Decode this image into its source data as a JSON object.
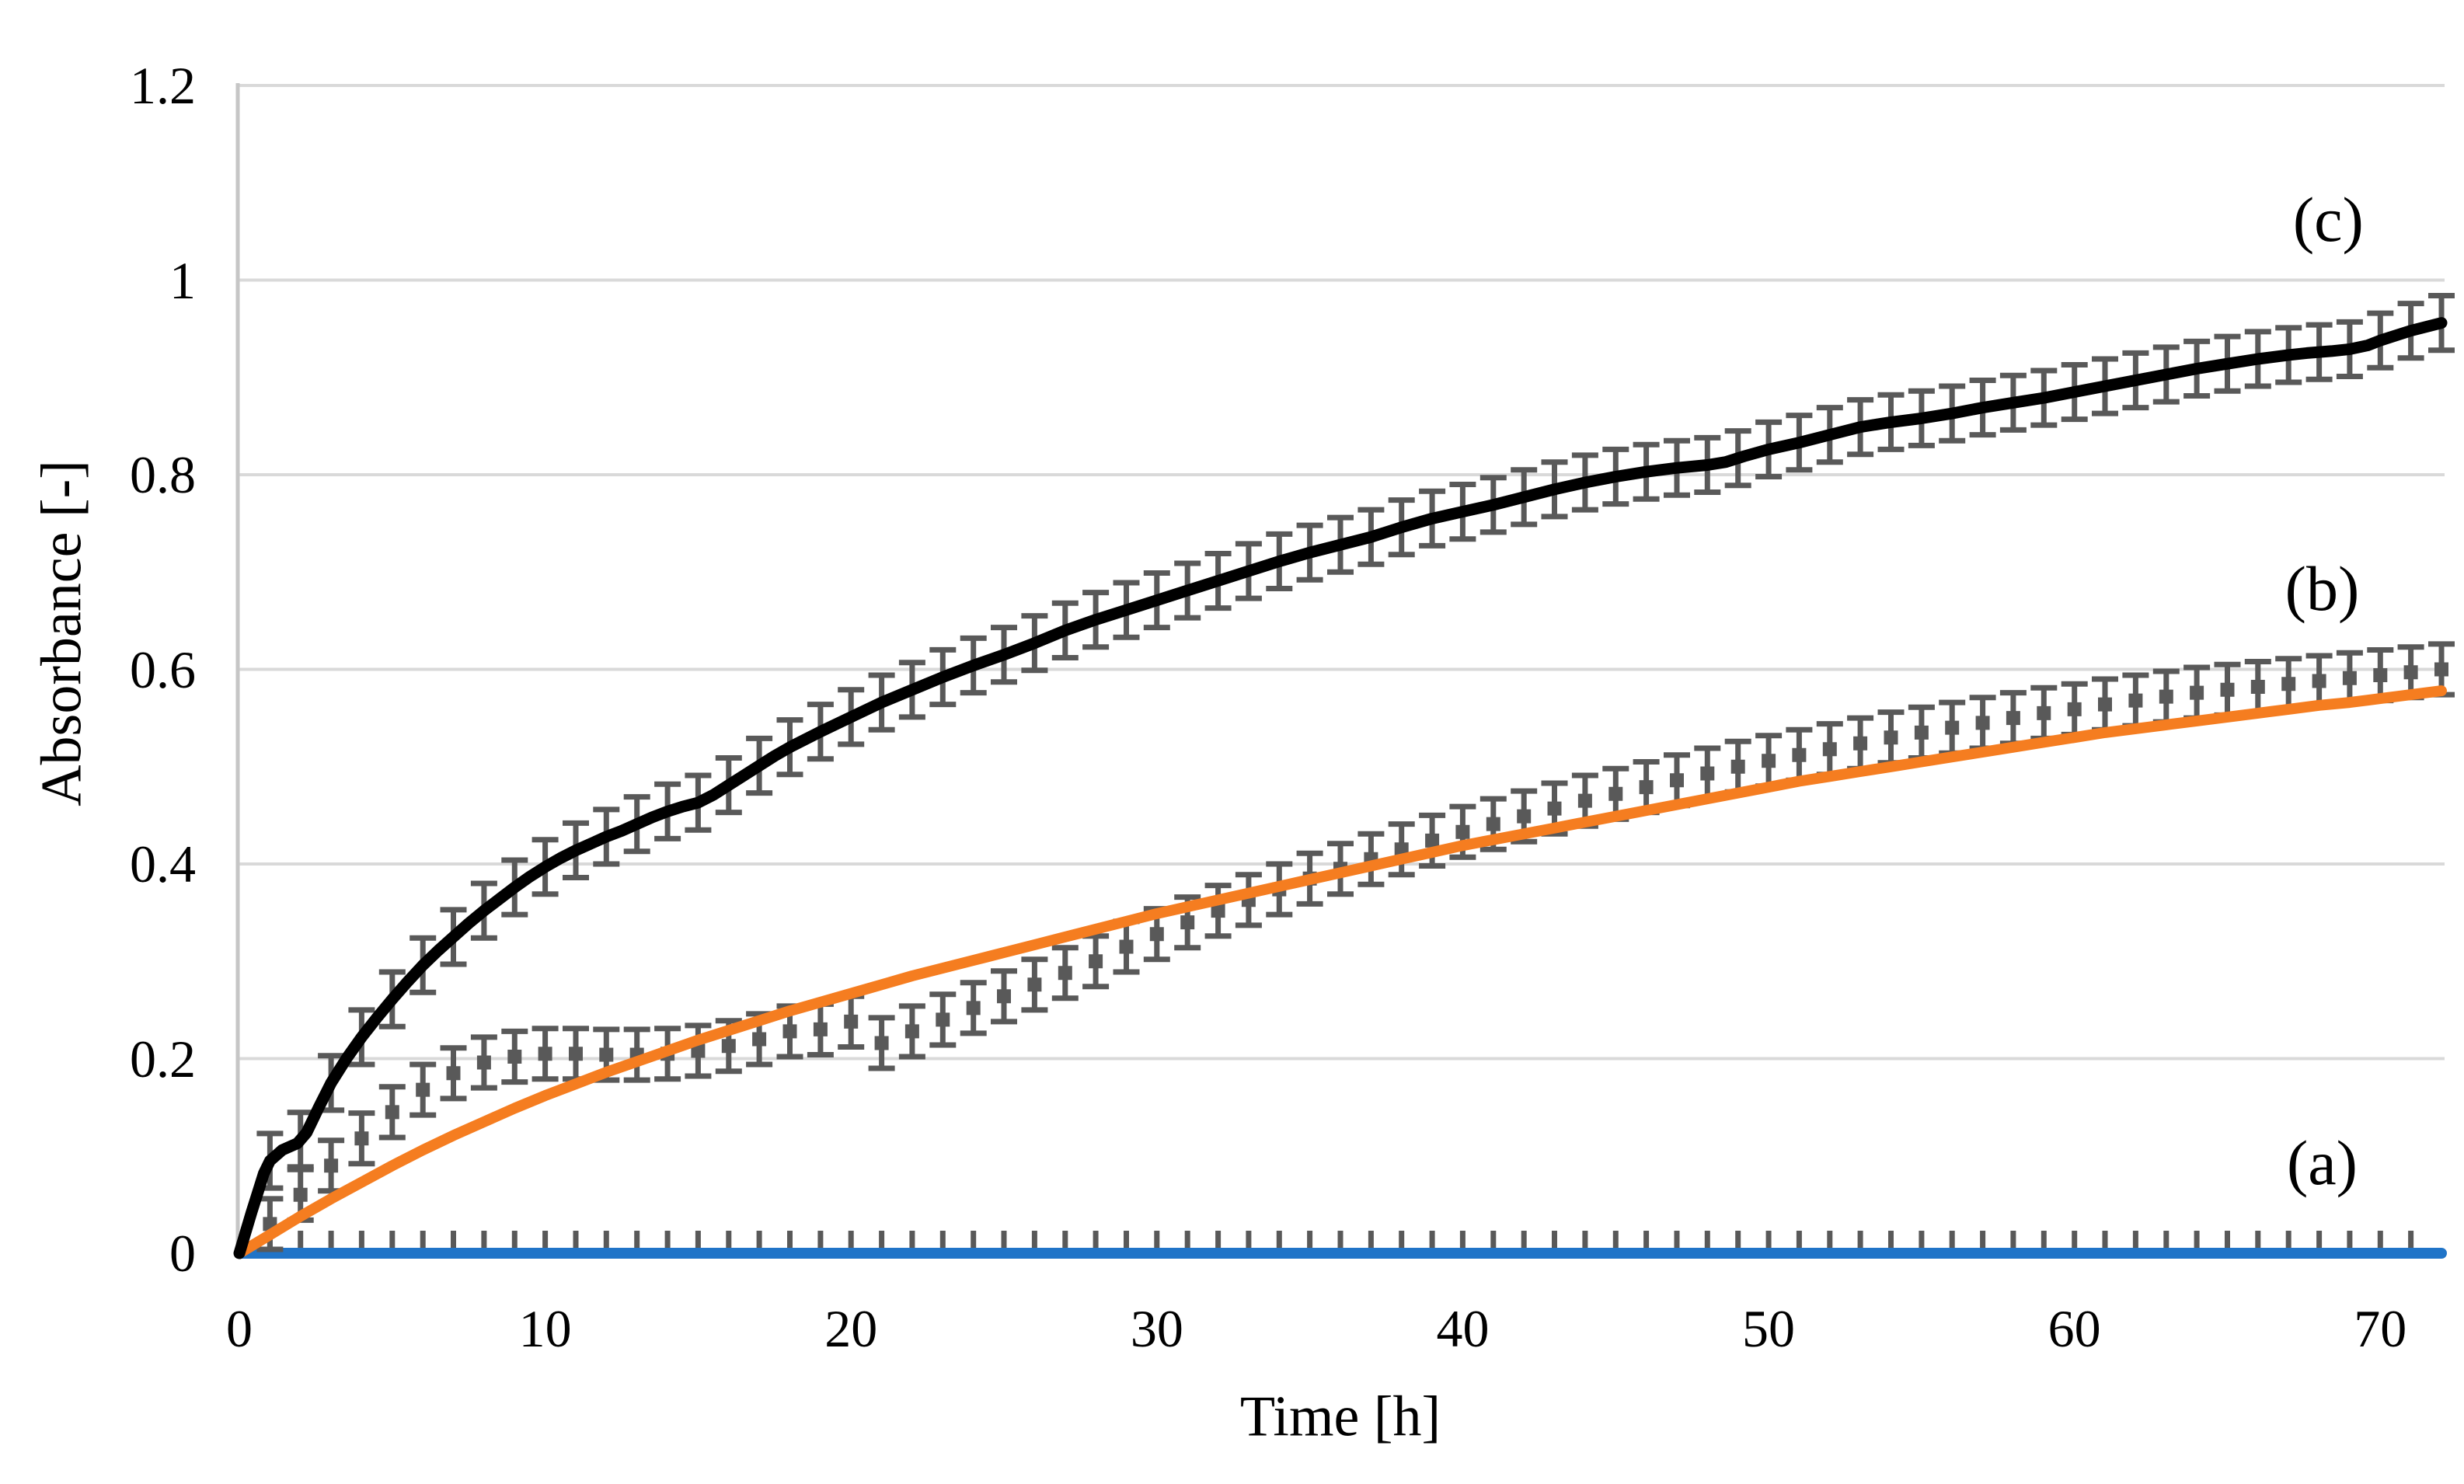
{
  "figure": {
    "background": "#ffffff"
  },
  "chart_data": {
    "type": "line",
    "title": "",
    "xlabel": "Time [h]",
    "ylabel": "Absorbance [-]",
    "xlim": [
      0,
      72
    ],
    "ylim": [
      0,
      1.2
    ],
    "x_ticks": [
      0,
      10,
      20,
      30,
      40,
      50,
      60,
      70
    ],
    "y_ticks": [
      0,
      0.2,
      0.4,
      0.6,
      0.8,
      1,
      1.2
    ],
    "y_tick_labels": [
      "0",
      "0.2",
      "0.4",
      "0.6",
      "0.8",
      "1",
      "1.2"
    ],
    "grid": "horizontal gridlines at every 0.2, light gray; left axis line gray; no legend box",
    "legend_position": "none (curves labeled by in-plot annotations)",
    "colors": {
      "series_a_blue": "#2074C8",
      "series_b_fit_orange": "#F57D20",
      "series_c_black": "#000000",
      "error_bars_gray": "#595959",
      "gridline": "#D9D9D9",
      "axis_line": "#C6C6C6"
    },
    "annotations": [
      {
        "label": "(c)",
        "x": 68.3,
        "y": 1.062
      },
      {
        "label": "(b)",
        "x": 68.1,
        "y": 0.683
      },
      {
        "label": "(a)",
        "x": 68.1,
        "y": 0.093
      }
    ],
    "series": [
      {
        "id": "a_blank",
        "annotation": "(a)",
        "kind": "line_with_hourly_error_ticks",
        "description": "flat blue line at zero absorbance with tiny hourly error ticks",
        "points": [
          [
            0,
            0
          ],
          [
            72,
            0
          ]
        ],
        "error_half": 0.017,
        "error_t_start": 1,
        "error_t_end": 71,
        "error_t_step": 1
      },
      {
        "id": "b_data",
        "annotation": "(b)",
        "kind": "errorbars_with_square_markers",
        "description": "measured data for series b, hourly, gray error bars with caps and small square markers",
        "t_start": 1,
        "t_step": 1,
        "error_half": 0.026,
        "values": [
          0.03,
          0.06,
          0.09,
          0.118,
          0.145,
          0.168,
          0.185,
          0.196,
          0.202,
          0.205,
          0.205,
          0.204,
          0.204,
          0.205,
          0.208,
          0.213,
          0.22,
          0.228,
          0.23,
          0.238,
          0.216,
          0.228,
          0.24,
          0.252,
          0.264,
          0.276,
          0.288,
          0.3,
          0.315,
          0.328,
          0.34,
          0.352,
          0.363,
          0.374,
          0.385,
          0.395,
          0.405,
          0.415,
          0.424,
          0.433,
          0.441,
          0.449,
          0.457,
          0.465,
          0.472,
          0.479,
          0.486,
          0.493,
          0.5,
          0.506,
          0.512,
          0.518,
          0.524,
          0.53,
          0.535,
          0.54,
          0.545,
          0.55,
          0.555,
          0.559,
          0.564,
          0.568,
          0.572,
          0.576,
          0.579,
          0.582,
          0.585,
          0.588,
          0.591,
          0.594,
          0.597,
          0.6
        ]
      },
      {
        "id": "b_fit",
        "annotation": "(b)",
        "kind": "line",
        "description": "smooth orange fitted curve for series b",
        "points": [
          [
            0,
            0
          ],
          [
            1,
            0.019
          ],
          [
            2,
            0.038
          ],
          [
            3,
            0.056
          ],
          [
            4,
            0.073
          ],
          [
            5,
            0.09
          ],
          [
            6,
            0.106
          ],
          [
            7,
            0.121
          ],
          [
            8,
            0.135
          ],
          [
            9,
            0.149
          ],
          [
            10,
            0.162
          ],
          [
            11,
            0.174
          ],
          [
            12,
            0.186
          ],
          [
            13,
            0.197
          ],
          [
            14,
            0.208
          ],
          [
            15,
            0.219
          ],
          [
            16,
            0.229
          ],
          [
            17,
            0.239
          ],
          [
            18,
            0.249
          ],
          [
            19,
            0.258
          ],
          [
            20,
            0.267
          ],
          [
            21,
            0.276
          ],
          [
            22,
            0.285
          ],
          [
            23,
            0.293
          ],
          [
            24,
            0.301
          ],
          [
            25,
            0.309
          ],
          [
            26,
            0.317
          ],
          [
            27,
            0.325
          ],
          [
            28,
            0.333
          ],
          [
            29,
            0.341
          ],
          [
            30,
            0.349
          ],
          [
            31,
            0.356
          ],
          [
            32,
            0.363
          ],
          [
            33,
            0.37
          ],
          [
            34,
            0.377
          ],
          [
            35,
            0.384
          ],
          [
            36,
            0.391
          ],
          [
            37,
            0.398
          ],
          [
            38,
            0.405
          ],
          [
            39,
            0.412
          ],
          [
            40,
            0.419
          ],
          [
            41,
            0.425
          ],
          [
            42,
            0.431
          ],
          [
            43,
            0.437
          ],
          [
            44,
            0.443
          ],
          [
            45,
            0.449
          ],
          [
            46,
            0.455
          ],
          [
            47,
            0.461
          ],
          [
            48,
            0.467
          ],
          [
            49,
            0.473
          ],
          [
            50,
            0.479
          ],
          [
            51,
            0.485
          ],
          [
            52,
            0.49
          ],
          [
            53,
            0.495
          ],
          [
            54,
            0.5
          ],
          [
            55,
            0.505
          ],
          [
            56,
            0.51
          ],
          [
            57,
            0.515
          ],
          [
            58,
            0.52
          ],
          [
            59,
            0.525
          ],
          [
            60,
            0.53
          ],
          [
            61,
            0.535
          ],
          [
            62,
            0.539
          ],
          [
            63,
            0.543
          ],
          [
            64,
            0.547
          ],
          [
            65,
            0.551
          ],
          [
            66,
            0.555
          ],
          [
            67,
            0.559
          ],
          [
            68,
            0.563
          ],
          [
            69,
            0.566
          ],
          [
            70,
            0.57
          ],
          [
            71,
            0.574
          ],
          [
            72,
            0.578
          ]
        ]
      },
      {
        "id": "c_errors",
        "annotation": "(c)",
        "kind": "errorbars_on_line",
        "description": "hourly gray error bars centered on the black curve",
        "t_start": 1,
        "t_end": 72,
        "t_step": 1,
        "error_half": 0.028
      },
      {
        "id": "c_line",
        "annotation": "(c)",
        "kind": "line",
        "description": "black measured curve for series c",
        "points": [
          [
            0,
            0
          ],
          [
            0.4,
            0.042
          ],
          [
            0.8,
            0.082
          ],
          [
            1,
            0.095
          ],
          [
            1.4,
            0.106
          ],
          [
            1.9,
            0.113
          ],
          [
            2.2,
            0.124
          ],
          [
            2.6,
            0.15
          ],
          [
            3,
            0.175
          ],
          [
            3.5,
            0.2
          ],
          [
            4,
            0.222
          ],
          [
            4.5,
            0.242
          ],
          [
            5,
            0.261
          ],
          [
            5.5,
            0.279
          ],
          [
            6,
            0.296
          ],
          [
            6.5,
            0.311
          ],
          [
            7,
            0.325
          ],
          [
            7.5,
            0.339
          ],
          [
            8,
            0.352
          ],
          [
            8.5,
            0.364
          ],
          [
            9,
            0.376
          ],
          [
            9.5,
            0.387
          ],
          [
            10,
            0.397
          ],
          [
            10.5,
            0.406
          ],
          [
            11,
            0.414
          ],
          [
            11.5,
            0.421
          ],
          [
            12,
            0.428
          ],
          [
            12.5,
            0.434
          ],
          [
            13,
            0.441
          ],
          [
            13.5,
            0.448
          ],
          [
            14,
            0.454
          ],
          [
            14.5,
            0.459
          ],
          [
            15,
            0.463
          ],
          [
            15.5,
            0.471
          ],
          [
            16,
            0.481
          ],
          [
            16.5,
            0.491
          ],
          [
            17,
            0.501
          ],
          [
            17.5,
            0.511
          ],
          [
            18,
            0.52
          ],
          [
            19,
            0.536
          ],
          [
            20,
            0.551
          ],
          [
            21,
            0.566
          ],
          [
            22,
            0.579
          ],
          [
            23,
            0.592
          ],
          [
            24,
            0.604
          ],
          [
            25,
            0.615
          ],
          [
            26,
            0.627
          ],
          [
            27,
            0.64
          ],
          [
            28,
            0.651
          ],
          [
            29,
            0.661
          ],
          [
            30,
            0.671
          ],
          [
            31,
            0.681
          ],
          [
            32,
            0.691
          ],
          [
            33,
            0.701
          ],
          [
            34,
            0.711
          ],
          [
            35,
            0.72
          ],
          [
            36,
            0.728
          ],
          [
            37,
            0.736
          ],
          [
            38,
            0.746
          ],
          [
            39,
            0.755
          ],
          [
            40,
            0.762
          ],
          [
            41,
            0.769
          ],
          [
            42,
            0.777
          ],
          [
            43,
            0.785
          ],
          [
            44,
            0.792
          ],
          [
            45,
            0.798
          ],
          [
            46,
            0.803
          ],
          [
            47,
            0.807
          ],
          [
            48,
            0.81
          ],
          [
            48.6,
            0.813
          ],
          [
            49.2,
            0.819
          ],
          [
            50,
            0.826
          ],
          [
            51,
            0.833
          ],
          [
            52,
            0.841
          ],
          [
            53,
            0.849
          ],
          [
            54,
            0.854
          ],
          [
            55,
            0.858
          ],
          [
            56,
            0.863
          ],
          [
            57,
            0.869
          ],
          [
            58,
            0.874
          ],
          [
            59,
            0.879
          ],
          [
            60,
            0.885
          ],
          [
            61,
            0.891
          ],
          [
            62,
            0.897
          ],
          [
            63,
            0.903
          ],
          [
            64,
            0.909
          ],
          [
            65,
            0.914
          ],
          [
            66,
            0.919
          ],
          [
            67,
            0.923
          ],
          [
            67.6,
            0.925
          ],
          [
            68.4,
            0.927
          ],
          [
            69,
            0.929
          ],
          [
            69.6,
            0.933
          ],
          [
            70,
            0.938
          ],
          [
            70.6,
            0.944
          ],
          [
            71,
            0.948
          ],
          [
            71.5,
            0.952
          ],
          [
            72,
            0.956
          ]
        ]
      }
    ]
  }
}
